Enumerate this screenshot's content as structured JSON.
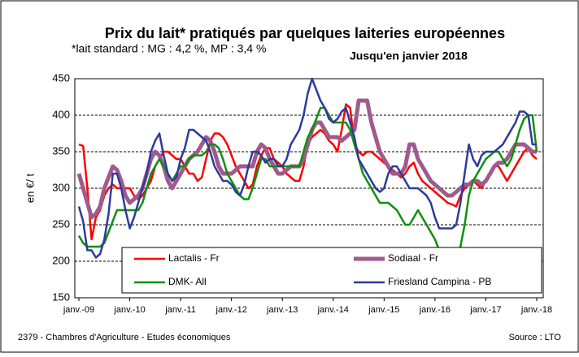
{
  "chart_data": {
    "type": "line",
    "title": "Prix du lait* pratiqués par quelques laiteries européennes",
    "subtitle": "*lait standard : MG : 4,2 %, MP : 3,4 %",
    "annotation": "Jusqu'en janvier 2018",
    "y_label": "en €/ t",
    "footer_left": "2379 - Chambres d'Agriculture - Etudes économiques",
    "footer_right": "Source : LTO",
    "ylim": [
      150,
      450
    ],
    "yticks": [
      150,
      200,
      250,
      300,
      350,
      400,
      450
    ],
    "grid": true,
    "categories": [
      "janv.-09",
      null,
      null,
      null,
      null,
      null,
      null,
      null,
      null,
      null,
      null,
      null,
      "janv.-10",
      null,
      null,
      null,
      null,
      null,
      null,
      null,
      null,
      null,
      null,
      null,
      "janv.-11",
      null,
      null,
      null,
      null,
      null,
      null,
      null,
      null,
      null,
      null,
      null,
      "janv.-12",
      null,
      null,
      null,
      null,
      null,
      null,
      null,
      null,
      null,
      null,
      null,
      "janv.-13",
      null,
      null,
      null,
      null,
      null,
      null,
      null,
      null,
      null,
      null,
      null,
      "janv.-14",
      null,
      null,
      null,
      null,
      null,
      null,
      null,
      null,
      null,
      null,
      null,
      "janv.-15",
      null,
      null,
      null,
      null,
      null,
      null,
      null,
      null,
      null,
      null,
      null,
      "janv.-16",
      null,
      null,
      null,
      null,
      null,
      null,
      null,
      null,
      null,
      null,
      null,
      "janv.-17",
      null,
      null,
      null,
      null,
      null,
      null,
      null,
      null,
      null,
      null,
      null,
      "janv.-18"
    ],
    "series": [
      {
        "name": "Lactalis - Fr",
        "color": "#ff0000",
        "values": [
          360,
          358,
          300,
          230,
          260,
          270,
          290,
          300,
          305,
          300,
          300,
          300,
          300,
          290,
          285,
          290,
          300,
          310,
          330,
          340,
          350,
          350,
          345,
          340,
          340,
          330,
          320,
          320,
          310,
          315,
          340,
          365,
          375,
          375,
          370,
          360,
          345,
          330,
          320,
          310,
          300,
          305,
          330,
          345,
          355,
          355,
          340,
          335,
          330,
          320,
          315,
          310,
          310,
          330,
          360,
          370,
          375,
          380,
          375,
          365,
          360,
          350,
          380,
          415,
          410,
          360,
          350,
          345,
          350,
          350,
          345,
          340,
          335,
          330,
          325,
          320,
          315,
          320,
          330,
          335,
          320,
          310,
          305,
          300,
          295,
          290,
          285,
          280,
          278,
          275,
          290,
          300,
          305,
          310,
          305,
          300,
          310,
          320,
          330,
          330,
          320,
          310,
          320,
          330,
          340,
          350,
          355,
          345,
          340
        ]
      },
      {
        "name": "Sodiaal - Fr",
        "color": "#a05a8c",
        "values": [
          320,
          300,
          280,
          260,
          265,
          275,
          300,
          315,
          330,
          325,
          310,
          290,
          280,
          285,
          290,
          300,
          320,
          340,
          350,
          345,
          330,
          310,
          300,
          310,
          320,
          330,
          340,
          345,
          350,
          360,
          370,
          365,
          350,
          330,
          320,
          320,
          320,
          325,
          330,
          330,
          330,
          330,
          350,
          360,
          355,
          340,
          330,
          320,
          320,
          325,
          330,
          330,
          330,
          340,
          360,
          380,
          390,
          390,
          380,
          370,
          370,
          370,
          365,
          370,
          375,
          380,
          420,
          420,
          420,
          390,
          370,
          350,
          340,
          330,
          320,
          320,
          320,
          330,
          360,
          360,
          340,
          330,
          320,
          310,
          305,
          300,
          295,
          290,
          290,
          295,
          300,
          305,
          305,
          310,
          310,
          305,
          310,
          320,
          330,
          335,
          335,
          340,
          350,
          360,
          360,
          360,
          355,
          350,
          350
        ]
      },
      {
        "name": "DMK- All",
        "color": "#109010",
        "values": [
          235,
          225,
          220,
          220,
          220,
          220,
          225,
          240,
          255,
          270,
          270,
          270,
          270,
          270,
          270,
          280,
          300,
          320,
          330,
          340,
          330,
          320,
          310,
          320,
          330,
          330,
          340,
          345,
          345,
          345,
          350,
          360,
          360,
          355,
          340,
          320,
          310,
          300,
          290,
          285,
          285,
          300,
          320,
          340,
          340,
          330,
          330,
          330,
          330,
          330,
          330,
          330,
          330,
          350,
          370,
          380,
          395,
          410,
          410,
          400,
          390,
          390,
          390,
          390,
          380,
          360,
          340,
          320,
          310,
          300,
          290,
          280,
          280,
          280,
          275,
          270,
          260,
          250,
          250,
          260,
          270,
          260,
          250,
          240,
          230,
          215,
          205,
          200,
          200,
          205,
          220,
          250,
          290,
          310,
          320,
          330,
          340,
          345,
          350,
          350,
          340,
          330,
          340,
          360,
          380,
          395,
          400,
          400,
          350
        ]
      },
      {
        "name": "Friesland Campina - PB",
        "color": "#2e3a9e",
        "values": [
          275,
          255,
          215,
          215,
          205,
          210,
          230,
          265,
          320,
          320,
          300,
          270,
          245,
          260,
          280,
          300,
          320,
          350,
          365,
          375,
          345,
          320,
          310,
          315,
          340,
          355,
          380,
          380,
          375,
          370,
          365,
          350,
          330,
          320,
          310,
          310,
          305,
          295,
          290,
          305,
          330,
          350,
          350,
          345,
          335,
          340,
          340,
          330,
          330,
          340,
          360,
          370,
          380,
          400,
          430,
          450,
          435,
          420,
          410,
          395,
          390,
          395,
          405,
          410,
          390,
          370,
          340,
          330,
          320,
          310,
          300,
          295,
          300,
          320,
          330,
          330,
          320,
          310,
          300,
          300,
          300,
          295,
          290,
          280,
          260,
          245,
          245,
          245,
          245,
          250,
          280,
          320,
          360,
          340,
          330,
          345,
          350,
          350,
          350,
          355,
          360,
          370,
          380,
          390,
          405,
          405,
          400,
          360,
          360
        ]
      }
    ]
  }
}
